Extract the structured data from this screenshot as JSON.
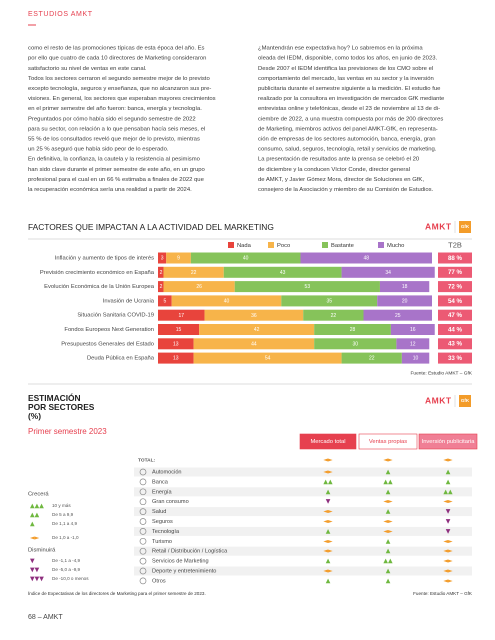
{
  "header": {
    "section": "ESTUDIOS AMKT",
    "page": "68 – AMKT"
  },
  "body": {
    "left": [
      "como el resto de las promociones típicas de esta época del año. Es",
      "por ello que cuatro de cada 10 directores de Marketing consideraron",
      "satisfactorio su nivel de ventas en este canal.",
      "Todos los sectores cerraron el segundo semestre mejor de lo previsto",
      "excepto tecnología, seguros y enseñanza, que no alcanzaron sus pre-",
      "visiones. En general, los sectores que esperaban mayores crecimientos",
      "en el primer semestre del año fueron: banca, energía y tecnología.",
      "Preguntados por cómo había sido el segundo semestre de 2022",
      "para su sector, con relación a lo que pensaban hacía seis meses, el",
      "55 % de los consultados reveló que mejor de lo previsto, mientras",
      "un 25 % aseguró que había sido peor de lo esperado.",
      "En definitiva, la confianza, la cautela y la resistencia al pesimismo",
      "han sido clave durante el primer semestre de este año, en un grupo",
      "profesional para el cual en un 66 % estimaba a finales de 2022 que",
      "la recuperación económica sería una realidad a partir de 2024."
    ],
    "right": [
      "¿Mantendrán ese expectativa hoy? Lo sabremos en la próxima",
      "oleada del IEDM, disponible, como todos los años, en junio de 2023.",
      "Desde 2007 el IEDM identifica las previsiones de los CMO sobre el",
      "comportamiento del mercado, las ventas en su sector y la inversión",
      "publicitaria durante el semestre siguiente a la medición. El estudio fue",
      "realizado por la consultora en investigación de mercados GfK mediante",
      "entrevistas online y telefónicas, desde el 23 de noviembre al 13 de di-",
      "ciembre de 2022, a una muestra compuesta por más de 200 directores",
      "de Marketing, miembros activos del panel AMKT-GfK, en representa-",
      "ción de empresas de los sectores automoción, banca, energía, gran",
      "consumo, salud, seguros, tecnología, retail y servicios de marketing.",
      "La presentación de resultados ante la prensa se celebró el 20",
      "de diciembre y la conducen Víctor Conde, director general",
      "de AMKT, y Javier Gómez Mora, director de Soluciones en GfK,",
      "consejero de la Asociación y miembro de su Comisión de Estudios."
    ]
  },
  "logo": {
    "brand": "AMKT",
    "partner": "GfK"
  },
  "factors_chart": {
    "title": "FACTORES QUE IMPACTAN A LA ACTIVIDAD DEL MARKETING",
    "categories": [
      "Inflación y aumento de tipos de interés",
      "Previsión crecimiento económico en España",
      "Evolución Económica de la Unión Europea",
      "Invasión de Ucrania",
      "Situación Sanitaria COVID-19",
      "Fondos Europeos Next Generation",
      "Presupuestos Generales del Estado",
      "Deuda Pública en España"
    ],
    "series": [
      {
        "name": "Nada",
        "color": "#e8443c",
        "values": [
          3,
          2,
          2,
          5,
          17,
          15,
          13,
          13
        ]
      },
      {
        "name": "Poco",
        "color": "#f7b44a",
        "values": [
          9,
          22,
          26,
          40,
          36,
          42,
          44,
          54
        ]
      },
      {
        "name": "Bastante",
        "color": "#86c35a",
        "values": [
          40,
          43,
          53,
          35,
          22,
          28,
          30,
          22
        ]
      },
      {
        "name": "Mucho",
        "color": "#a874c9",
        "values": [
          48,
          34,
          18,
          20,
          25,
          16,
          12,
          10
        ]
      }
    ],
    "t2b_header": "T2B",
    "t2b": [
      "88 %",
      "77 %",
      "72 %",
      "54 %",
      "47 %",
      "44 %",
      "43 %",
      "33 %"
    ],
    "source": "Fuente: Estudio AMKT – GfK"
  },
  "sectors": {
    "title": [
      "ESTIMACIÓN",
      "POR SECTORES",
      "(%)"
    ],
    "subtitle": "Primer semestre 2023",
    "columns": [
      {
        "name": "Mercado total",
        "fill": "#e6404f",
        "text": "#ffffff"
      },
      {
        "name": "Ventas propias",
        "fill": "#ffffff",
        "text": "#e6404f"
      },
      {
        "name": "Inversión publicitaria",
        "fill": "#f07f95",
        "text": "#ffffff"
      }
    ],
    "total_label": "TOTAL:",
    "total": [
      "◄►",
      "◄►",
      "◄►"
    ],
    "rows": [
      {
        "name": "Automoción",
        "marks": [
          "◄►",
          "▲",
          "▲"
        ]
      },
      {
        "name": "Banca",
        "marks": [
          "▲▲",
          "▲▲",
          "▲"
        ]
      },
      {
        "name": "Energía",
        "marks": [
          "▲",
          "▲",
          "▲▲"
        ]
      },
      {
        "name": "Gran consumo",
        "marks": [
          "▼",
          "◄►",
          "◄►"
        ]
      },
      {
        "name": "Salud",
        "marks": [
          "◄►",
          "▲",
          "▼"
        ]
      },
      {
        "name": "Seguros",
        "marks": [
          "◄►",
          "◄►",
          "▼"
        ]
      },
      {
        "name": "Tecnología",
        "marks": [
          "▲",
          "◄►",
          "▼"
        ]
      },
      {
        "name": "Turismo",
        "marks": [
          "◄►",
          "▲",
          "◄►"
        ]
      },
      {
        "name": "Retail / Distribución / Logística",
        "marks": [
          "◄►",
          "▲",
          "◄►"
        ]
      },
      {
        "name": "Servicios de Marketing",
        "marks": [
          "▲",
          "▲▲",
          "◄►"
        ]
      },
      {
        "name": "Deporte y entretenimiento",
        "marks": [
          "◄►",
          "▲",
          "◄►"
        ]
      },
      {
        "name": "Otros",
        "marks": [
          "▲",
          "▲",
          "◄►"
        ]
      }
    ],
    "legend": {
      "up_title": "Crecerá",
      "down_title": "Disminuirá",
      "up": [
        {
          "symbol": "▲▲▲",
          "label": "10 y más",
          "color": "#6fb83f"
        },
        {
          "symbol": "▲▲",
          "label": "De 5 a 9,9",
          "color": "#6fb83f"
        },
        {
          "symbol": "▲",
          "label": "De 1,1 a 4,9",
          "color": "#6fb83f"
        }
      ],
      "flat": [
        {
          "symbol": "◄►",
          "label": "De 1,0 a -1,0",
          "color": "#f39c2a"
        }
      ],
      "down": [
        {
          "symbol": "▼",
          "label": "De -1,1 a -4,9",
          "color": "#8e2f7e"
        },
        {
          "symbol": "▼▼",
          "label": "De -5,0 a -9,9",
          "color": "#8e2f7e"
        },
        {
          "symbol": "▼▼▼",
          "label": "De -10,0 o menos",
          "color": "#8e2f7e"
        }
      ]
    },
    "note": "Índice de Expectativas de los directores de Marketing para el primer semestre de 2023.",
    "source": "Fuente: Estudio AMKT – GfK"
  }
}
